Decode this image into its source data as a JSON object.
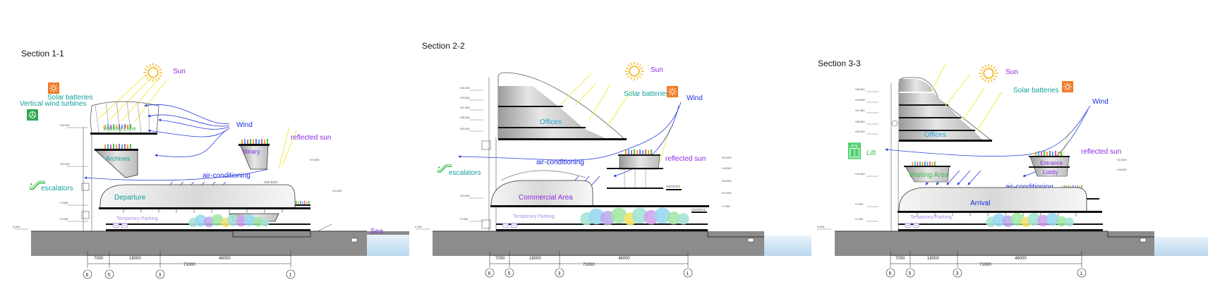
{
  "sections": [
    {
      "title": "Section 1-1",
      "labels": {
        "sun": "Sun",
        "solar_batteries": "Solar batteries",
        "vertical_wind_turbines": "Vertical wind turbines",
        "waiting_zone": "Waiting Zone",
        "wind": "Wind",
        "reflected_sun": "reflected sun",
        "archives": "Archives",
        "library": "library",
        "air_conditioning": "air-conditioning",
        "escalators": "escalators",
        "departure": "Departure",
        "temporary_parking": "Temporary Parking",
        "sea": "Sea"
      },
      "dimensions": [
        "7000",
        "18000",
        "46000",
        "71000"
      ],
      "axes": [
        "6",
        "5",
        "3",
        "1"
      ]
    },
    {
      "title": "Section 2-2",
      "labels": {
        "sun": "Sun",
        "solar_batteries": "Solar batteries",
        "wind": "Wind",
        "offices": "Offices",
        "air_conditioning": "air-conditioning",
        "reflected_sun": "reflected sun",
        "escalators": "escalators",
        "commercial_area": "Commercial Area",
        "temporary_parking": "Temporary Parking"
      },
      "dimensions": [
        "7000",
        "18000",
        "46000",
        "71000"
      ],
      "axes": [
        "6",
        "5",
        "3",
        "1"
      ]
    },
    {
      "title": "Section 3-3",
      "labels": {
        "sun": "Sun",
        "solar_batteries": "Solar batteries",
        "wind": "Wind",
        "offices": "Offices",
        "reflected_sun": "reflected sun",
        "lift": "Lift",
        "waiting_area": "Waiting Area",
        "entrance_lobby_1": "Entrance",
        "entrance_lobby_2": "Lobby",
        "air_conditioning": "air-conditioning",
        "arrival": "Arrival",
        "temporary_parking": "Temporary Parking"
      },
      "dimensions": [
        "7000",
        "18000",
        "46000",
        "71000"
      ],
      "axes": [
        "6",
        "5",
        "3",
        "1"
      ]
    }
  ],
  "colors": {
    "ground": "#8c8c8c",
    "water": "#d6e8f5",
    "sun": "#f3b515",
    "wind_arrow": "#2a3bd8",
    "badge_orange": "#f07a25",
    "badge_green": "#2fa84f"
  },
  "icons": [
    "sun-icon",
    "solar-battery-icon",
    "wind-turbine-icon",
    "escalator-icon",
    "lift-icon"
  ]
}
